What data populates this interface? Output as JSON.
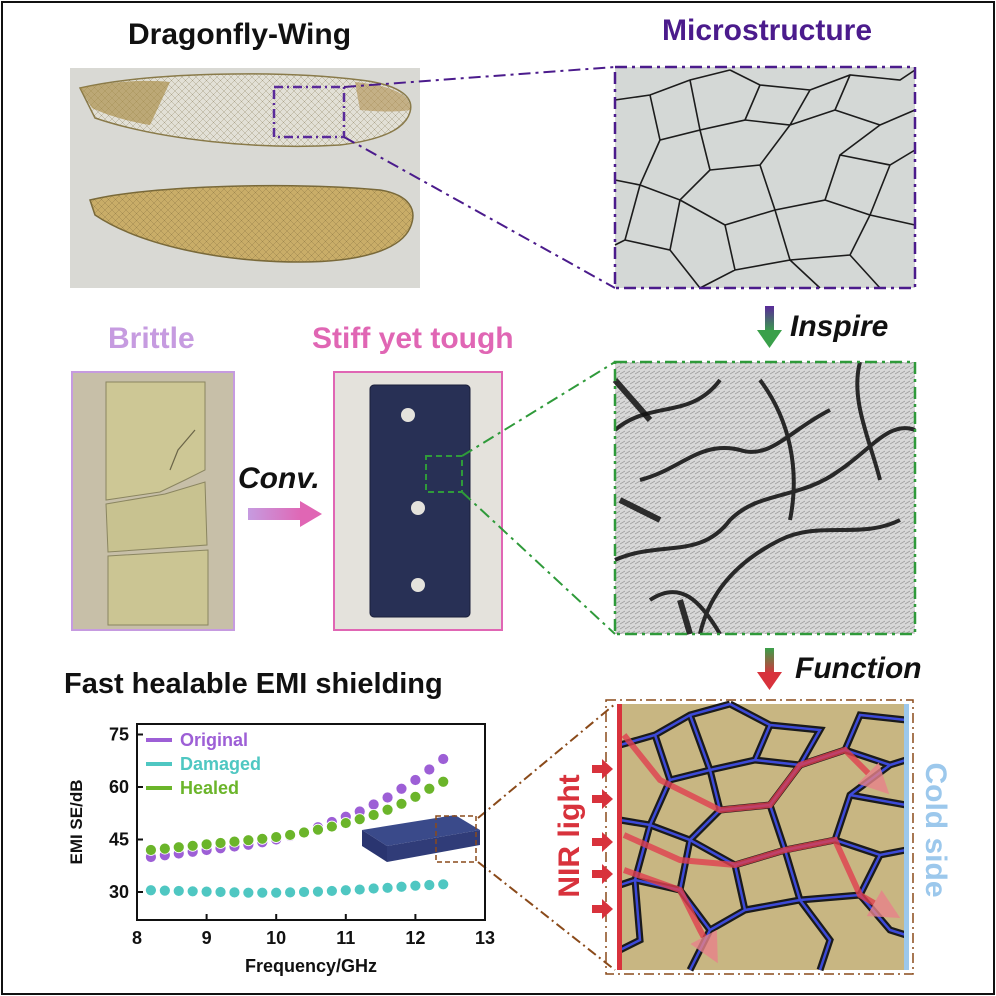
{
  "labels": {
    "dragonfly_wing": "Dragonfly-Wing",
    "microstructure": "Microstructure",
    "brittle": "Brittle",
    "stiff_tough": "Stiff yet tough",
    "conv": "Conv.",
    "inspire": "Inspire",
    "function": "Function",
    "emi_title": "Fast healable EMI shielding",
    "nir_light": "NIR light",
    "cold_side": "Cold side"
  },
  "colors": {
    "purple_label": "#4b1b8c",
    "brittle": "#c69be0",
    "stiff": "#e066b4",
    "green_box": "#2f9a3a",
    "brown_dash": "#8a4a1a",
    "nir_red": "#d8323c",
    "cold_blue": "#9cc8ec",
    "original": "#9d5fd6",
    "damaged": "#4fc7c2",
    "healed": "#6bb52a"
  },
  "chart_data": {
    "type": "scatter",
    "xlabel": "Frequency/GHz",
    "ylabel": "EMI SE/dB",
    "xlim": [
      8,
      13
    ],
    "ylim": [
      22,
      78
    ],
    "xticks": [
      "8",
      "9",
      "10",
      "11",
      "12",
      "13"
    ],
    "yticks": [
      "30",
      "45",
      "60",
      "75"
    ],
    "legend_position": "top-left",
    "x": [
      8.2,
      8.4,
      8.6,
      8.8,
      9.0,
      9.2,
      9.4,
      9.6,
      9.8,
      10.0,
      10.2,
      10.4,
      10.6,
      10.8,
      11.0,
      11.2,
      11.4,
      11.6,
      11.8,
      12.0,
      12.2,
      12.4
    ],
    "series": [
      {
        "name": "Original",
        "color": "#9d5fd6",
        "values": [
          40.0,
          40.5,
          41.0,
          41.5,
          42.0,
          42.5,
          43.0,
          43.5,
          44.2,
          45.0,
          46.0,
          47.0,
          48.5,
          50.0,
          51.5,
          53.0,
          55.0,
          57.0,
          59.5,
          62.0,
          65.0,
          68.0
        ]
      },
      {
        "name": "Damaged",
        "color": "#4fc7c2",
        "values": [
          30.5,
          30.4,
          30.3,
          30.2,
          30.1,
          30.0,
          29.9,
          29.8,
          29.8,
          29.8,
          29.9,
          30.0,
          30.1,
          30.3,
          30.5,
          30.7,
          31.0,
          31.2,
          31.5,
          31.8,
          32.0,
          32.2
        ]
      },
      {
        "name": "Healed",
        "color": "#6bb52a",
        "values": [
          42.0,
          42.4,
          42.8,
          43.2,
          43.6,
          44.0,
          44.4,
          44.8,
          45.2,
          45.7,
          46.3,
          47.0,
          47.8,
          48.7,
          49.7,
          50.8,
          52.0,
          53.5,
          55.2,
          57.2,
          59.5,
          61.5
        ]
      }
    ]
  }
}
